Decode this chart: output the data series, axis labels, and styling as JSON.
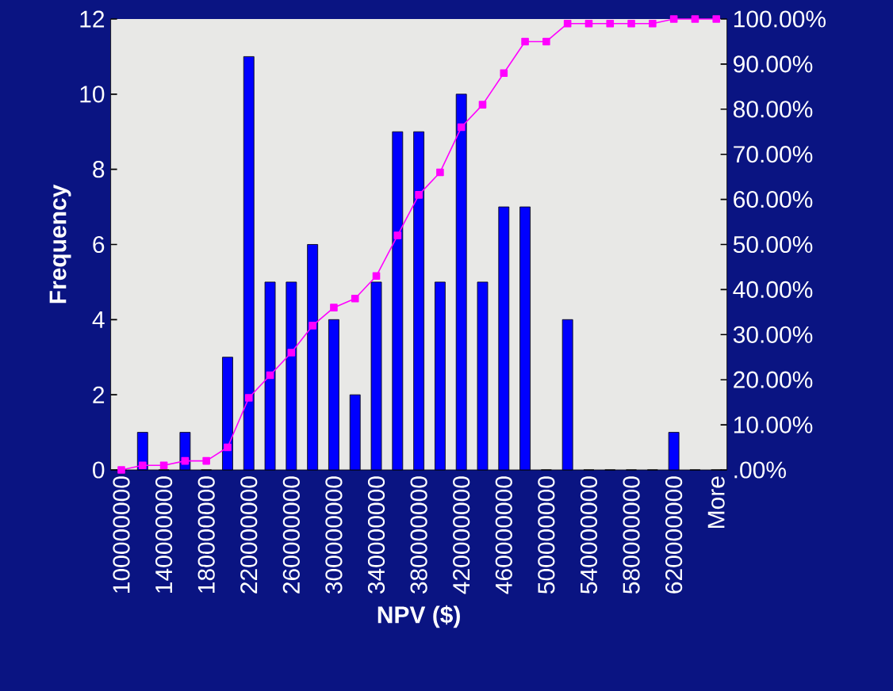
{
  "chart_data": {
    "type": "bar",
    "xlabel": "NPV ($)",
    "ylabel": "Frequency",
    "categories": [
      "100000000",
      null,
      "140000000",
      null,
      "180000000",
      null,
      "220000000",
      null,
      "260000000",
      null,
      "300000000",
      null,
      "340000000",
      null,
      "380000000",
      null,
      "420000000",
      null,
      "460000000",
      null,
      "500000000",
      null,
      "540000000",
      null,
      "580000000",
      null,
      "620000000",
      null,
      "More"
    ],
    "series": [
      {
        "color": "#0000ff",
        "values": [
          0,
          1,
          0,
          1,
          0,
          3,
          11,
          5,
          5,
          6,
          4,
          2,
          5,
          9,
          9,
          5,
          10,
          5,
          7,
          7,
          0,
          4,
          0,
          0,
          0,
          0,
          1,
          0,
          0
        ]
      },
      {
        "type": "line",
        "axis": "y2",
        "color": "#ff00ff",
        "marker": "square",
        "values": [
          0,
          1,
          1,
          2,
          2,
          5,
          16,
          21,
          26,
          32,
          36,
          38,
          43,
          52,
          61,
          66,
          76,
          81,
          88,
          95,
          95,
          99,
          99,
          99,
          99,
          99,
          100,
          100,
          100
        ]
      }
    ],
    "ylim": [
      0,
      12
    ],
    "yticks": [
      0,
      2,
      4,
      6,
      8,
      10,
      12
    ],
    "y2lim": [
      0,
      100
    ],
    "y2ticks": [
      {
        "value": 0,
        "label": ".00%"
      },
      {
        "value": 10,
        "label": "10.00%"
      },
      {
        "value": 20,
        "label": "20.00%"
      },
      {
        "value": 30,
        "label": "30.00%"
      },
      {
        "value": 40,
        "label": "40.00%"
      },
      {
        "value": 50,
        "label": "50.00%"
      },
      {
        "value": 60,
        "label": "60.00%"
      },
      {
        "value": 70,
        "label": "70.00%"
      },
      {
        "value": 80,
        "label": "80.00%"
      },
      {
        "value": 90,
        "label": "90.00%"
      },
      {
        "value": 100,
        "label": "100.00%"
      }
    ]
  }
}
